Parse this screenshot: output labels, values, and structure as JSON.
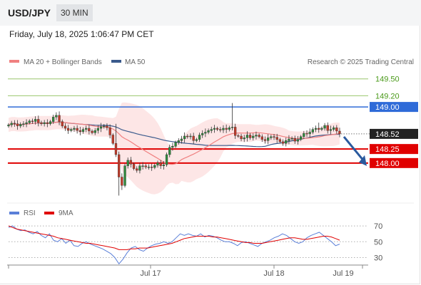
{
  "header": {
    "symbol": "USD/JPY",
    "timeframe": "30 MIN",
    "datetime": "Friday, July 18, 2025 1:06:47 PM CET"
  },
  "legend": {
    "ma20_label": "MA 20 + Bollinger Bands",
    "ma50_label": "MA 50",
    "credit": "Research © 2025 Trading Central",
    "rsi_label": "RSI",
    "rsi_ma_label": "9MA"
  },
  "colors": {
    "ma20": "#f08080",
    "ma50": "#3a5a8c",
    "bollinger": "#fde3e3",
    "green_level": "#9ac66b",
    "green_text": "#4a9a1a",
    "pivot": "#2f6bd8",
    "support": "#e00000",
    "last_price": "#222222",
    "forecast_arrow": "#2a5a9e",
    "rsi": "#5a7fd8",
    "rsi_ma": "#e00000"
  },
  "chart_data": [
    {
      "type": "candlestick",
      "title": "USD/JPY 30 MIN",
      "x_labels": [
        "Jul 17",
        "Jul 18",
        "Jul 19"
      ],
      "ylim": [
        147.35,
        149.7
      ],
      "series": [
        {
          "name": "MA 20 + Bollinger Bands",
          "kind": "ma_bands"
        },
        {
          "name": "MA 50",
          "kind": "ma"
        }
      ],
      "close": [
        148.68,
        148.71,
        148.7,
        148.66,
        148.69,
        148.7,
        148.72,
        148.75,
        148.74,
        148.78,
        148.72,
        148.7,
        148.72,
        148.7,
        148.74,
        148.82,
        148.85,
        148.74,
        148.66,
        148.62,
        148.58,
        148.6,
        148.62,
        148.58,
        148.56,
        148.6,
        148.62,
        148.57,
        148.54,
        148.58,
        148.62,
        148.65,
        148.66,
        148.63,
        148.5,
        148.35,
        148.15,
        147.75,
        147.6,
        147.95,
        148.05,
        147.98,
        147.9,
        147.87,
        147.95,
        147.95,
        147.93,
        147.93,
        147.92,
        147.96,
        148.0,
        147.95,
        147.97,
        148.15,
        148.28,
        148.3,
        148.37,
        148.4,
        148.43,
        148.48,
        148.47,
        148.48,
        148.4,
        148.42,
        148.5,
        148.53,
        148.55,
        148.58,
        148.6,
        148.62,
        148.6,
        148.59,
        148.62,
        148.6,
        148.63,
        148.64,
        148.49,
        148.48,
        148.43,
        148.45,
        148.5,
        148.45,
        148.48,
        148.5,
        148.47,
        148.42,
        148.4,
        148.45,
        148.47,
        148.46,
        148.42,
        148.38,
        148.35,
        148.4,
        148.43,
        148.44,
        148.39,
        148.42,
        148.47,
        148.53,
        148.52,
        148.55,
        148.6,
        148.62,
        148.6,
        148.62,
        148.67,
        148.58,
        148.6,
        148.63,
        148.57,
        148.52
      ],
      "levels": [
        {
          "value": 149.5,
          "label": "149.50",
          "kind": "resistance"
        },
        {
          "value": 149.2,
          "label": "149.20",
          "kind": "resistance"
        },
        {
          "value": 149.0,
          "label": "149.00",
          "kind": "pivot"
        },
        {
          "value": 148.52,
          "label": "148.52",
          "kind": "last"
        },
        {
          "value": 148.25,
          "label": "148.25",
          "kind": "support"
        },
        {
          "value": 148.0,
          "label": "148.00",
          "kind": "support"
        }
      ],
      "forecast": {
        "direction": "down",
        "from": 148.52,
        "to": 148.0
      }
    },
    {
      "type": "line",
      "title": "RSI",
      "ylim": [
        25,
        80
      ],
      "levels": [
        70,
        50,
        30
      ],
      "series": [
        {
          "name": "RSI",
          "values": [
            68,
            70,
            66,
            64,
            65,
            62,
            60,
            63,
            58,
            55,
            60,
            52,
            50,
            54,
            48,
            52,
            45,
            44,
            48,
            50,
            47,
            45,
            43,
            41,
            38,
            35,
            30,
            22,
            28,
            36,
            42,
            44,
            40,
            38,
            42,
            45,
            47,
            48,
            50,
            48,
            50,
            55,
            60,
            58,
            60,
            58,
            57,
            60,
            56,
            58,
            57,
            55,
            52,
            50,
            50,
            48,
            45,
            49,
            50,
            48,
            46,
            44,
            48,
            50,
            52,
            55,
            57,
            60,
            58,
            54,
            50,
            48,
            50,
            55,
            58,
            60,
            62,
            58,
            54,
            50,
            45,
            47
          ]
        },
        {
          "name": "9MA",
          "values": [
            70,
            68,
            66,
            65,
            64,
            63,
            62,
            61,
            60,
            59,
            58,
            57,
            55,
            54,
            53,
            52,
            51,
            50,
            49,
            48,
            48,
            47,
            46,
            45,
            44,
            43,
            42,
            40,
            40,
            40,
            41,
            41,
            42,
            42,
            42,
            43,
            44,
            45,
            46,
            47,
            48,
            50,
            52,
            54,
            55,
            56,
            57,
            57,
            57,
            57,
            56,
            56,
            55,
            54,
            53,
            52,
            51,
            50,
            49,
            49,
            48,
            48,
            48,
            49,
            50,
            51,
            52,
            53,
            54,
            55,
            55,
            54,
            53,
            53,
            54,
            55,
            56,
            57,
            57,
            56,
            54,
            52
          ]
        }
      ]
    }
  ]
}
